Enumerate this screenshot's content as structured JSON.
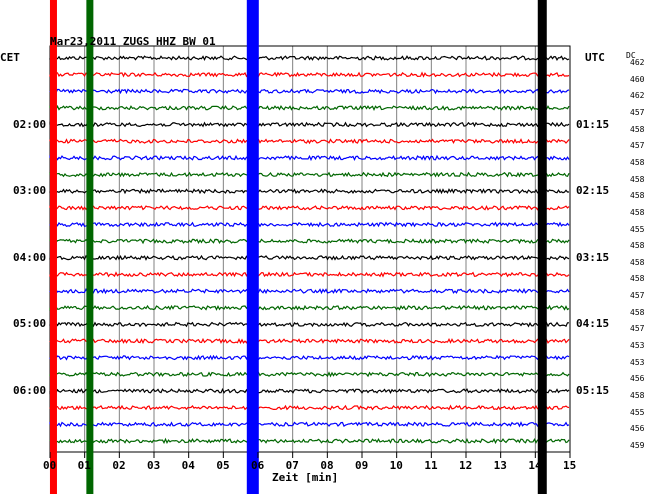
{
  "chart_data": {
    "type": "line",
    "title": "Mar23,2011   ZUGS HHZ BW 01",
    "xlabel": "Zeit [min]",
    "xlim": [
      0,
      15
    ],
    "x_ticks": [
      "00",
      "01",
      "02",
      "03",
      "04",
      "05",
      "06",
      "07",
      "08",
      "09",
      "10",
      "11",
      "12",
      "13",
      "14",
      "15"
    ],
    "left_axis_label": "CET",
    "right_axis_label": "UTC",
    "right_column_label": "DC",
    "left_time_labels": [
      "02:00",
      "03:00",
      "04:00",
      "05:00",
      "06:00"
    ],
    "right_time_labels": [
      "01:15",
      "02:15",
      "03:15",
      "04:15",
      "05:15"
    ],
    "left_label_traces": [
      4,
      8,
      12,
      16,
      20
    ],
    "trace_colors": [
      "#000000",
      "#ff0000",
      "#0000ff",
      "#006600"
    ],
    "dc_values": [
      462,
      460,
      462,
      457,
      458,
      457,
      458,
      458,
      458,
      458,
      455,
      458,
      458,
      458,
      457,
      458,
      457,
      453,
      453,
      456,
      458,
      455,
      456,
      459
    ],
    "series": [
      {
        "color": "#000000",
        "traces": [
          0,
          4,
          8,
          12,
          16,
          20
        ]
      },
      {
        "color": "#ff0000",
        "traces": [
          1,
          5,
          9,
          13,
          17,
          21
        ]
      },
      {
        "color": "#0000ff",
        "traces": [
          2,
          6,
          10,
          14,
          18,
          22
        ]
      },
      {
        "color": "#006600",
        "traces": [
          3,
          7,
          11,
          15,
          19,
          23
        ]
      }
    ],
    "vertical_bands": [
      {
        "x_min": 0.1,
        "color": "#ff0000"
      },
      {
        "x_min": 1.15,
        "color": "#006600"
      },
      {
        "x_min": 5.85,
        "color": "#0000ff"
      },
      {
        "x_min": 14.2,
        "color": "#000000"
      }
    ],
    "grid": true
  }
}
